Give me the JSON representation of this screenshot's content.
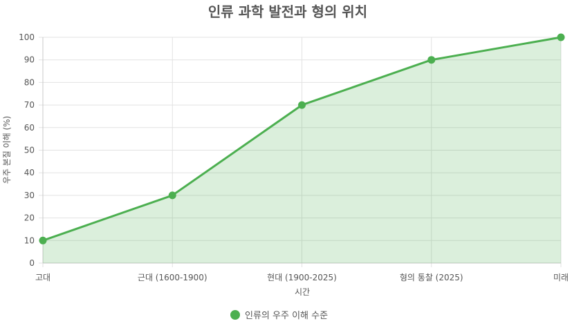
{
  "chart_data": {
    "type": "area",
    "title": "인류 과학 발전과 형의 위치",
    "xlabel": "시간",
    "ylabel": "우주 본질 이해 (%)",
    "categories": [
      "고대",
      "근대 (1600-1900)",
      "현대 (1900-2025)",
      "형의 통찰 (2025)",
      "미래"
    ],
    "ylim": [
      0,
      100
    ],
    "yticks": [
      0,
      10,
      20,
      30,
      40,
      50,
      60,
      70,
      80,
      90,
      100
    ],
    "grid": true,
    "legend_position": "bottom",
    "series": [
      {
        "name": "인류의 우주 이해 수준",
        "values": [
          10,
          30,
          70,
          90,
          100
        ]
      }
    ],
    "colors": {
      "line": "#4caf50",
      "fill": "rgba(76,175,80,0.2)"
    }
  }
}
